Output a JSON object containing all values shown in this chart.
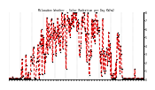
{
  "title": "Milwaukee Weather - Solar Radiation per Day KW/m2",
  "background_color": "#ffffff",
  "line_color": "#dd0000",
  "marker_color": "#000000",
  "grid_color": "#888888",
  "ylim": [
    0,
    8
  ],
  "ytick_labels": [
    "0",
    "1",
    "2",
    "3",
    "4",
    "5",
    "6",
    "7",
    "8"
  ],
  "ytick_values": [
    0,
    1,
    2,
    3,
    4,
    5,
    6,
    7,
    8
  ],
  "n_days": 365,
  "month_day_counts": [
    31,
    28,
    31,
    30,
    31,
    30,
    31,
    31,
    30,
    31,
    30,
    31
  ]
}
